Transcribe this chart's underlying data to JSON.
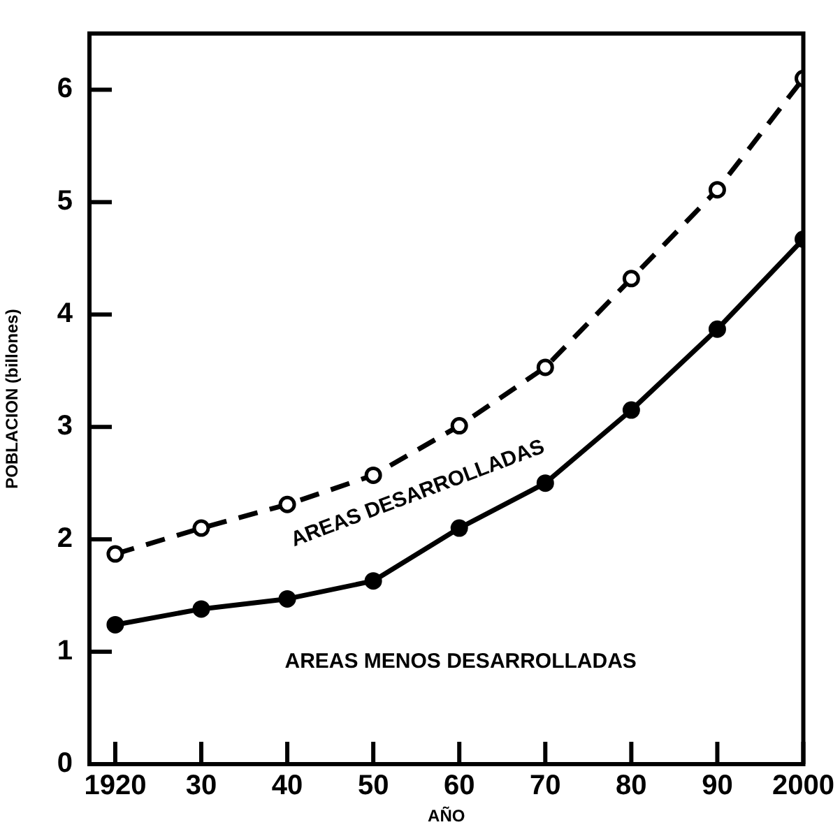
{
  "chart_data": {
    "type": "line",
    "xlabel": "AÑO",
    "ylabel": "POBLACION (billones)",
    "x": [
      1920,
      1930,
      1940,
      1950,
      1960,
      1970,
      1980,
      1990,
      2000
    ],
    "xlim": [
      1917,
      2000
    ],
    "xticks": [
      1920,
      {
        "value": 1930,
        "label": "30"
      },
      {
        "value": 1940,
        "label": "40"
      },
      {
        "value": 1950,
        "label": "50"
      },
      {
        "value": 1960,
        "label": "60"
      },
      {
        "value": 1970,
        "label": "70"
      },
      {
        "value": 1980,
        "label": "80"
      },
      {
        "value": 1990,
        "label": "90"
      },
      2000
    ],
    "ylim": [
      0,
      6.5
    ],
    "yticks": [
      0,
      1,
      2,
      3,
      4,
      5,
      6
    ],
    "grid": false,
    "legend": false,
    "marker": "circle",
    "series": [
      {
        "color": "#000000",
        "line_style": "dashed",
        "values": [
          1.87,
          2.1,
          2.31,
          2.57,
          3.01,
          3.53,
          4.32,
          5.11,
          6.1
        ]
      },
      {
        "color": "#000000",
        "line_style": "solid",
        "values": [
          1.24,
          1.38,
          1.47,
          1.63,
          2.1,
          2.5,
          3.15,
          3.87,
          4.67
        ]
      }
    ],
    "annotations": [
      "AREAS DESARROLLADAS",
      "AREAS MENOS DESARROLLADAS"
    ]
  }
}
